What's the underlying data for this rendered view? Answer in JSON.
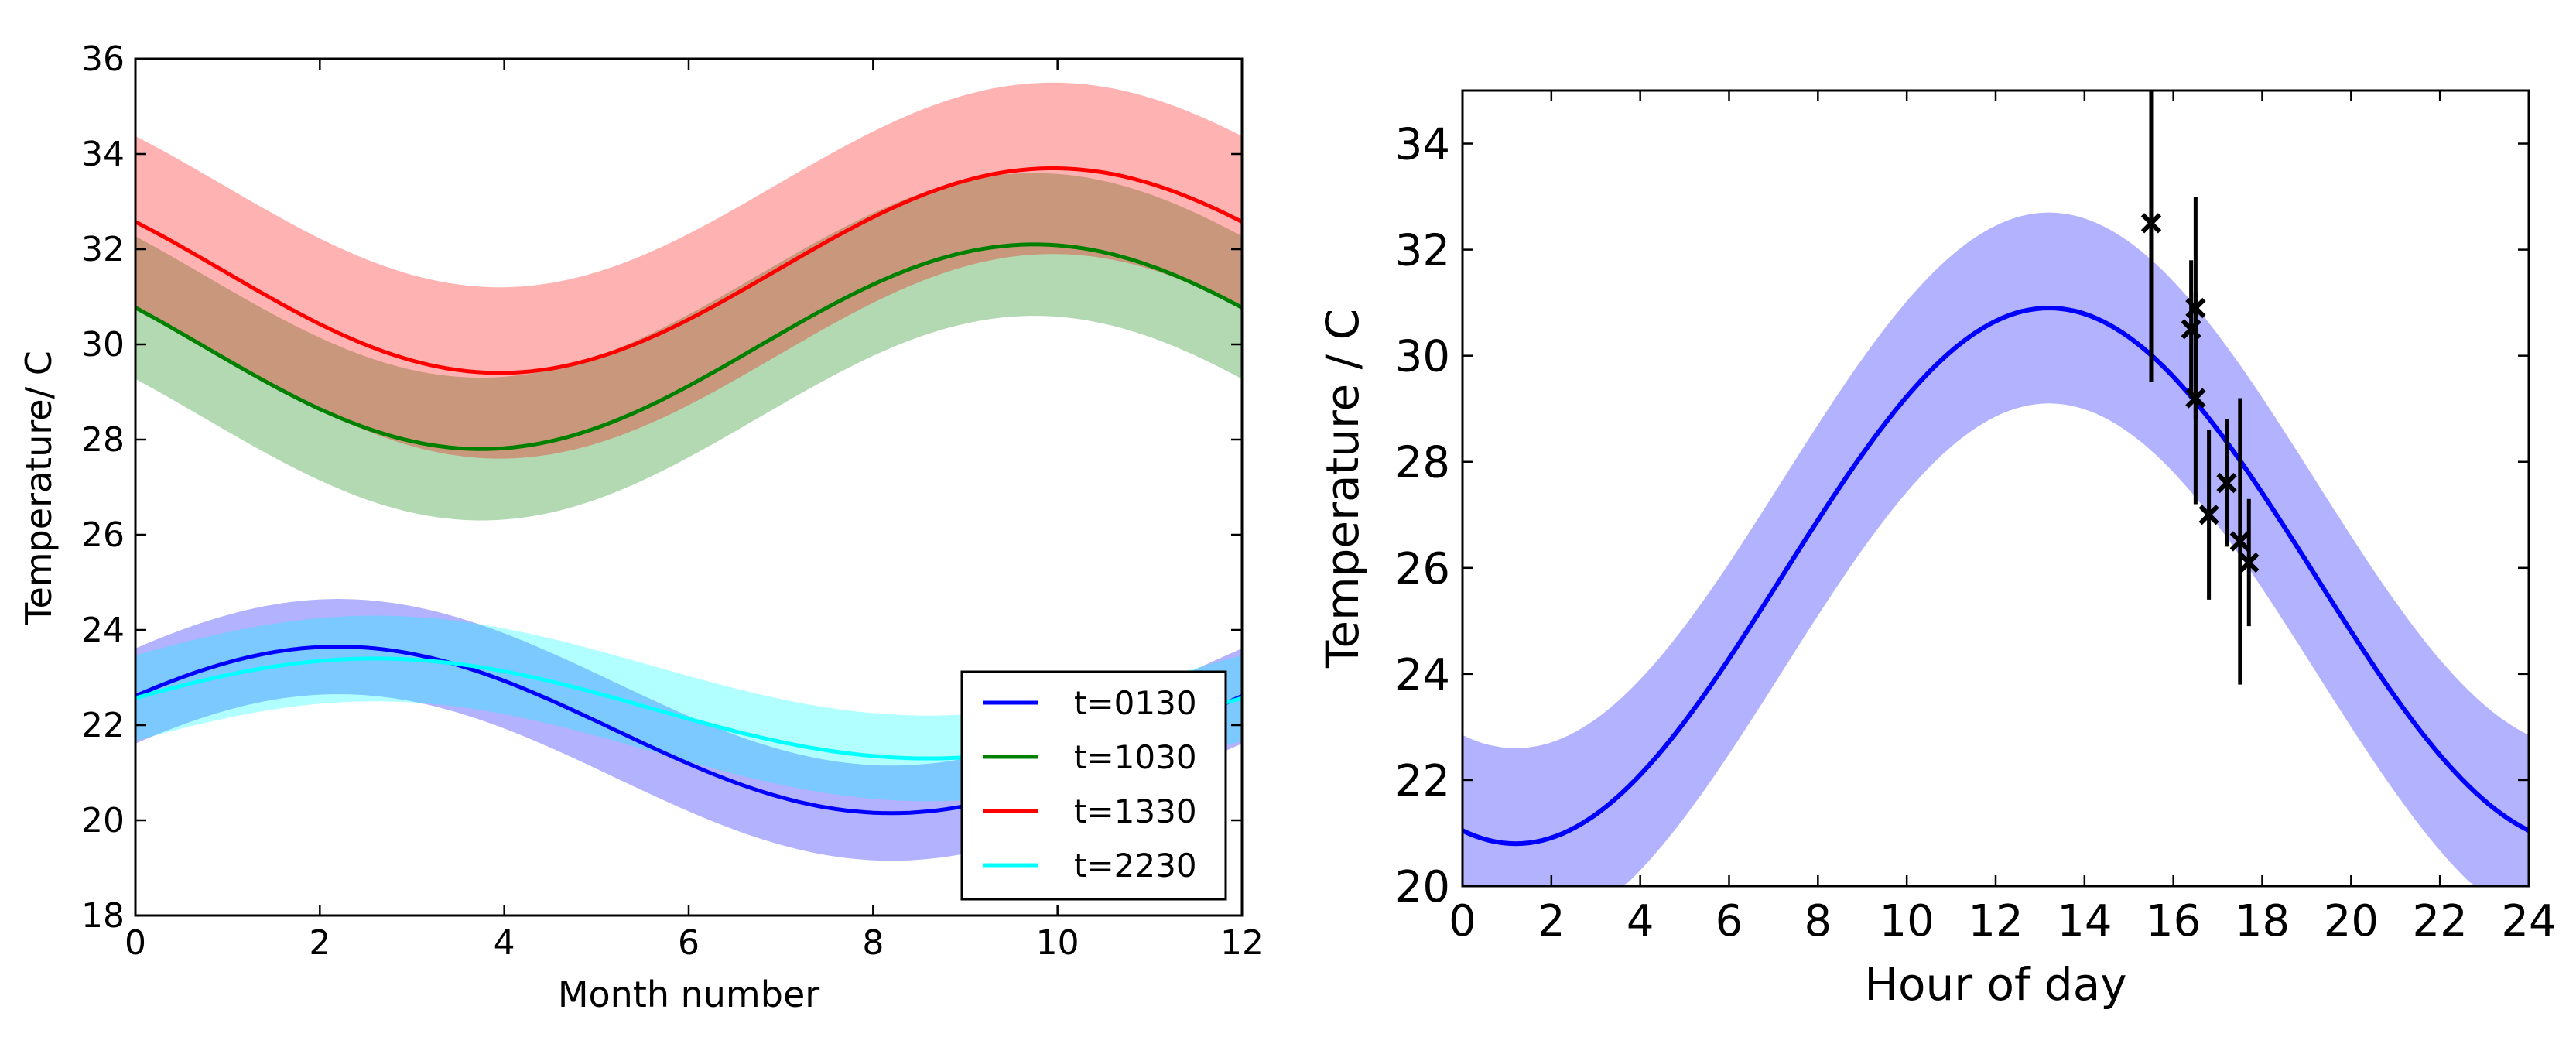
{
  "chart_data": [
    {
      "type": "line",
      "subtype": "line-with-confidence-bands",
      "title": "",
      "xlabel": "Month number",
      "ylabel": "Temperature/ C",
      "xlim": [
        0,
        12
      ],
      "ylim": [
        18,
        36
      ],
      "xticks": [
        "0",
        "2",
        "4",
        "6",
        "8",
        "10",
        "12"
      ],
      "yticks": [
        "18",
        "20",
        "22",
        "24",
        "26",
        "28",
        "30",
        "32",
        "34",
        "36"
      ],
      "grid": false,
      "legend_position": "lower-right",
      "series": [
        {
          "name": "t=0130",
          "color": "#0000ff",
          "band_color": "#b0b0ff",
          "mean": 21.9,
          "amplitude": 1.75,
          "peak_month": 2.2,
          "band_halfwidth": 1.0
        },
        {
          "name": "t=1030",
          "color": "#008000",
          "band_color": "#b2dab2",
          "mean": 29.95,
          "amplitude": 2.15,
          "peak_month": 9.75,
          "band_halfwidth": 1.5
        },
        {
          "name": "t=1330",
          "color": "#ff0000",
          "band_color": "#ffb2b2",
          "mean": 31.55,
          "amplitude": 2.15,
          "peak_month": 9.95,
          "band_halfwidth": 1.8
        },
        {
          "name": "t=2230",
          "color": "#00ffff",
          "band_color": "#b0ffff",
          "mean": 22.35,
          "amplitude": 1.05,
          "peak_month": 2.6,
          "band_halfwidth": 0.9
        }
      ],
      "legend": [
        "t=0130",
        "t=1030",
        "t=1330",
        "t=2230"
      ]
    },
    {
      "type": "line",
      "subtype": "line-with-band-and-errorbar-points",
      "title": "",
      "xlabel": "Hour of day",
      "ylabel": "Temperature / C",
      "xlim": [
        0,
        24
      ],
      "ylim": [
        20,
        35
      ],
      "xticks": [
        "0",
        "2",
        "4",
        "6",
        "8",
        "10",
        "12",
        "14",
        "16",
        "18",
        "20",
        "22",
        "24"
      ],
      "yticks": [
        "20",
        "22",
        "24",
        "26",
        "28",
        "30",
        "32",
        "34"
      ],
      "grid": false,
      "model": {
        "color": "#0000ff",
        "band_color": "#b0b0ff",
        "mean": 25.85,
        "amplitude": 5.05,
        "peak_hour": 13.2,
        "band_halfwidth": 1.8
      },
      "observations": [
        {
          "x": 15.5,
          "y": 32.5,
          "err": 3.0
        },
        {
          "x": 16.4,
          "y": 30.5,
          "err": 1.3
        },
        {
          "x": 16.5,
          "y": 30.9,
          "err": 2.1
        },
        {
          "x": 16.5,
          "y": 29.2,
          "err": 2.0
        },
        {
          "x": 16.8,
          "y": 27.0,
          "err": 1.6
        },
        {
          "x": 17.2,
          "y": 27.6,
          "err": 1.2
        },
        {
          "x": 17.5,
          "y": 26.5,
          "err": 2.7
        },
        {
          "x": 17.7,
          "y": 26.1,
          "err": 1.2
        }
      ]
    }
  ]
}
